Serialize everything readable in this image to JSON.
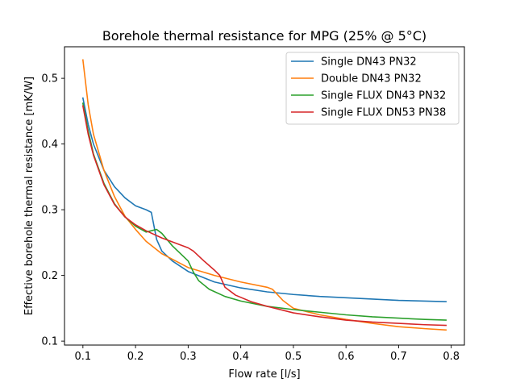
{
  "chart_data": {
    "type": "line",
    "title": "Borehole thermal resistance for MPG (25% @ 5°C)",
    "xlabel": "Flow rate [l/s]",
    "ylabel": "Effective borehole thermal resistance [mK/W]",
    "xlim": [
      0.065,
      0.825
    ],
    "ylim": [
      0.094,
      0.548
    ],
    "xticks": [
      0.1,
      0.2,
      0.3,
      0.4,
      0.5,
      0.6,
      0.7,
      0.8
    ],
    "yticks": [
      0.1,
      0.2,
      0.3,
      0.4,
      0.5
    ],
    "xtick_labels": [
      "0.1",
      "0.2",
      "0.3",
      "0.4",
      "0.5",
      "0.6",
      "0.7",
      "0.8"
    ],
    "ytick_labels": [
      "0.1",
      "0.2",
      "0.3",
      "0.4",
      "0.5"
    ],
    "grid": false,
    "legend_position": "top-right",
    "series": [
      {
        "name": "Single DN43 PN32",
        "color": "#1f77b4",
        "x": [
          0.1,
          0.11,
          0.12,
          0.14,
          0.16,
          0.18,
          0.2,
          0.22,
          0.23,
          0.24,
          0.25,
          0.27,
          0.3,
          0.35,
          0.4,
          0.45,
          0.5,
          0.55,
          0.6,
          0.65,
          0.7,
          0.75,
          0.79
        ],
        "y": [
          0.47,
          0.43,
          0.4,
          0.36,
          0.335,
          0.318,
          0.306,
          0.3,
          0.296,
          0.255,
          0.237,
          0.222,
          0.206,
          0.19,
          0.181,
          0.175,
          0.171,
          0.168,
          0.166,
          0.164,
          0.162,
          0.161,
          0.16
        ]
      },
      {
        "name": "Double DN43 PN32",
        "color": "#ff7f0e",
        "x": [
          0.1,
          0.11,
          0.12,
          0.14,
          0.16,
          0.18,
          0.2,
          0.22,
          0.25,
          0.3,
          0.35,
          0.4,
          0.45,
          0.46,
          0.48,
          0.5,
          0.55,
          0.6,
          0.65,
          0.7,
          0.75,
          0.79
        ],
        "y": [
          0.528,
          0.46,
          0.415,
          0.36,
          0.32,
          0.29,
          0.27,
          0.252,
          0.233,
          0.212,
          0.2,
          0.19,
          0.182,
          0.179,
          0.162,
          0.15,
          0.14,
          0.133,
          0.127,
          0.122,
          0.119,
          0.117
        ]
      },
      {
        "name": "Single FLUX DN43 PN32",
        "color": "#2ca02c",
        "x": [
          0.1,
          0.11,
          0.12,
          0.14,
          0.16,
          0.18,
          0.2,
          0.22,
          0.24,
          0.25,
          0.27,
          0.3,
          0.31,
          0.32,
          0.34,
          0.37,
          0.4,
          0.45,
          0.5,
          0.55,
          0.6,
          0.65,
          0.7,
          0.75,
          0.79
        ],
        "y": [
          0.462,
          0.42,
          0.385,
          0.34,
          0.309,
          0.289,
          0.275,
          0.266,
          0.27,
          0.264,
          0.245,
          0.222,
          0.205,
          0.192,
          0.179,
          0.168,
          0.161,
          0.153,
          0.148,
          0.144,
          0.14,
          0.137,
          0.135,
          0.133,
          0.132
        ]
      },
      {
        "name": "Single FLUX DN53 PN38",
        "color": "#d62728",
        "x": [
          0.1,
          0.11,
          0.12,
          0.14,
          0.16,
          0.18,
          0.2,
          0.22,
          0.25,
          0.28,
          0.3,
          0.31,
          0.33,
          0.35,
          0.36,
          0.37,
          0.39,
          0.42,
          0.45,
          0.5,
          0.55,
          0.6,
          0.65,
          0.7,
          0.75,
          0.79
        ],
        "y": [
          0.458,
          0.415,
          0.383,
          0.338,
          0.308,
          0.289,
          0.277,
          0.268,
          0.257,
          0.248,
          0.242,
          0.237,
          0.222,
          0.208,
          0.2,
          0.182,
          0.17,
          0.16,
          0.153,
          0.143,
          0.137,
          0.132,
          0.129,
          0.127,
          0.125,
          0.124
        ]
      }
    ]
  }
}
